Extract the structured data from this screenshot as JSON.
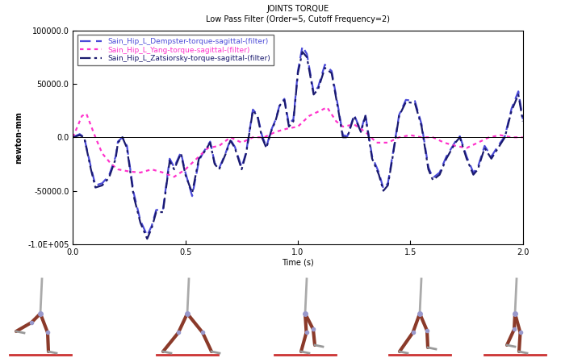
{
  "chart_data": {
    "type": "line",
    "title": "JOINTS TORQUE",
    "subtitle": "Low Pass Filter (Order=5, Cutoff Frequency=2)",
    "x_label": "Time (s)",
    "y_label": "newton-mm",
    "xlim": [
      0.0,
      2.0
    ],
    "ylim": [
      -100000,
      100000
    ],
    "xticks": [
      {
        "value": 0.0,
        "label": "0.0"
      },
      {
        "value": 0.5,
        "label": "0.5"
      },
      {
        "value": 1.0,
        "label": "1.0"
      },
      {
        "value": 1.5,
        "label": "1.5"
      },
      {
        "value": 2.0,
        "label": "2.0"
      }
    ],
    "yticks": [
      {
        "value": -100000,
        "label": "-1.0E+005"
      },
      {
        "value": -50000,
        "label": "-50000.0"
      },
      {
        "value": 0,
        "label": "0.0"
      },
      {
        "value": 50000,
        "label": "50000.0"
      },
      {
        "value": 100000,
        "label": "100000.0"
      }
    ],
    "grid": false,
    "legend": "upper left",
    "series": [
      {
        "name": "Sain_Hip_L_Dempster-torque-sagittal-(filter)",
        "color": "#4b4bd8",
        "line_style": "dashed",
        "x": [
          0.0,
          0.03,
          0.05,
          0.08,
          0.1,
          0.13,
          0.16,
          0.19,
          0.2,
          0.22,
          0.24,
          0.27,
          0.3,
          0.33,
          0.35,
          0.37,
          0.4,
          0.43,
          0.45,
          0.48,
          0.5,
          0.53,
          0.56,
          0.58,
          0.61,
          0.63,
          0.65,
          0.68,
          0.7,
          0.72,
          0.75,
          0.77,
          0.8,
          0.82,
          0.84,
          0.86,
          0.88,
          0.9,
          0.92,
          0.94,
          0.96,
          0.98,
          1.0,
          1.02,
          1.04,
          1.07,
          1.09,
          1.12,
          1.15,
          1.18,
          1.2,
          1.22,
          1.25,
          1.28,
          1.3,
          1.33,
          1.36,
          1.38,
          1.4,
          1.42,
          1.45,
          1.48,
          1.52,
          1.55,
          1.58,
          1.6,
          1.63,
          1.66,
          1.7,
          1.72,
          1.75,
          1.78,
          1.8,
          1.83,
          1.86,
          1.89,
          1.92,
          1.95,
          1.98,
          2.0
        ],
        "values": [
          0,
          3000,
          0,
          -28000,
          -45000,
          -43000,
          -36000,
          -18000,
          -4000,
          0,
          -8000,
          -52000,
          -78000,
          -92000,
          -83000,
          -68000,
          -68000,
          -20000,
          -28000,
          -14000,
          -33000,
          -55000,
          -22000,
          -14000,
          -4000,
          -24000,
          -29000,
          -14000,
          -2000,
          -9000,
          -28000,
          -14000,
          26000,
          21000,
          2000,
          -9000,
          6000,
          16000,
          31000,
          36000,
          12000,
          17000,
          62000,
          85000,
          78000,
          42000,
          47000,
          68000,
          62000,
          27000,
          2000,
          1000,
          21000,
          6000,
          21000,
          -18000,
          -33000,
          -48000,
          -43000,
          -18000,
          21000,
          35000,
          34000,
          12000,
          -28000,
          -38000,
          -33000,
          -18000,
          -4000,
          1000,
          -18000,
          -33000,
          -28000,
          -8000,
          -18000,
          -8000,
          1000,
          27000,
          43000,
          17000
        ]
      },
      {
        "name": "Sain_Hip_L_Yang-torque-sagittal-(filter)",
        "color": "#ff33cc",
        "line_style": "dotted",
        "x": [
          0.0,
          0.04,
          0.06,
          0.1,
          0.13,
          0.17,
          0.2,
          0.25,
          0.3,
          0.35,
          0.4,
          0.45,
          0.5,
          0.55,
          0.6,
          0.65,
          0.7,
          0.75,
          0.8,
          0.85,
          0.9,
          0.95,
          1.0,
          1.05,
          1.1,
          1.13,
          1.17,
          1.2,
          1.25,
          1.3,
          1.35,
          1.4,
          1.45,
          1.5,
          1.55,
          1.6,
          1.65,
          1.7,
          1.75,
          1.8,
          1.85,
          1.9,
          1.95,
          2.0
        ],
        "values": [
          0,
          20000,
          22000,
          0,
          -15000,
          -25000,
          -30000,
          -32000,
          -33000,
          -30000,
          -33000,
          -37000,
          -30000,
          -20000,
          -10000,
          -8000,
          0,
          -5000,
          0,
          0,
          5000,
          8000,
          10000,
          20000,
          25000,
          28000,
          15000,
          10000,
          12000,
          5000,
          -5000,
          -5000,
          0,
          2000,
          0,
          0,
          -5000,
          -8000,
          -10000,
          -5000,
          0,
          2000,
          0,
          0
        ]
      },
      {
        "name": "Sain_Hip_L_Zatsiorsky-torque-sagittal-(filter)",
        "color": "#1a1a6e",
        "line_style": "dashdot",
        "x": [
          0.0,
          0.03,
          0.05,
          0.08,
          0.1,
          0.13,
          0.16,
          0.19,
          0.2,
          0.22,
          0.24,
          0.27,
          0.3,
          0.33,
          0.35,
          0.37,
          0.4,
          0.43,
          0.45,
          0.48,
          0.5,
          0.53,
          0.56,
          0.58,
          0.61,
          0.63,
          0.65,
          0.68,
          0.7,
          0.72,
          0.75,
          0.77,
          0.8,
          0.82,
          0.84,
          0.86,
          0.88,
          0.9,
          0.92,
          0.94,
          0.96,
          0.98,
          1.0,
          1.02,
          1.04,
          1.07,
          1.09,
          1.12,
          1.15,
          1.18,
          1.2,
          1.22,
          1.25,
          1.28,
          1.3,
          1.33,
          1.36,
          1.38,
          1.4,
          1.42,
          1.45,
          1.48,
          1.52,
          1.55,
          1.58,
          1.6,
          1.63,
          1.66,
          1.7,
          1.72,
          1.75,
          1.78,
          1.8,
          1.83,
          1.86,
          1.89,
          1.92,
          1.95,
          1.98,
          2.0
        ],
        "values": [
          0,
          2000,
          0,
          -30000,
          -47000,
          -45000,
          -38000,
          -20000,
          -5000,
          0,
          -10000,
          -55000,
          -80000,
          -95000,
          -85000,
          -70000,
          -70000,
          -22000,
          -30000,
          -15000,
          -35000,
          -52000,
          -20000,
          -15000,
          -5000,
          -25000,
          -30000,
          -15000,
          -3000,
          -10000,
          -30000,
          -15000,
          25000,
          20000,
          0,
          -10000,
          5000,
          15000,
          30000,
          35000,
          10000,
          15000,
          60000,
          80000,
          75000,
          40000,
          45000,
          65000,
          60000,
          25000,
          0,
          0,
          20000,
          5000,
          20000,
          -20000,
          -35000,
          -50000,
          -45000,
          -20000,
          20000,
          33000,
          32000,
          10000,
          -30000,
          -40000,
          -35000,
          -20000,
          -5000,
          0,
          -20000,
          -35000,
          -30000,
          -10000,
          -20000,
          -10000,
          0,
          25000,
          40000,
          15000
        ]
      }
    ]
  }
}
